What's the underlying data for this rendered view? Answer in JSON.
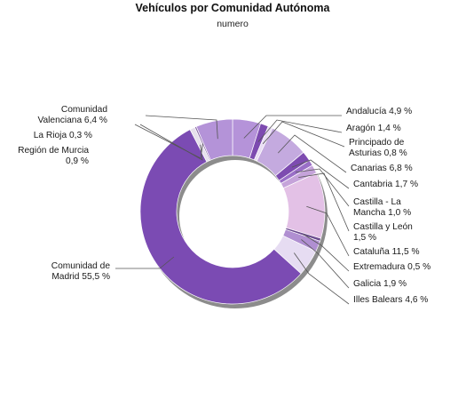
{
  "chart_data": {
    "type": "pie",
    "variant": "donut",
    "title": "Vehículos por Comunidad Autónoma",
    "subtitle": "numero",
    "units": "%",
    "slices": [
      {
        "label": [
          "Andalucía 4,9 %"
        ],
        "value": 4.9,
        "color": "#b593d9"
      },
      {
        "label": [
          "Aragón 1,4 %"
        ],
        "value": 1.4,
        "color": "#7d4bb0"
      },
      {
        "label": [
          "Principado de",
          "Asturias 0,8 %"
        ],
        "value": 0.8,
        "color": "#e9ddf4"
      },
      {
        "label": [
          "Canarias 6,8 %"
        ],
        "value": 6.8,
        "color": "#c4aadf"
      },
      {
        "label": [
          "Cantabria 1,7 %"
        ],
        "value": 1.7,
        "color": "#7d4bb0"
      },
      {
        "label": [
          "Castilla - La",
          "Mancha 1,0 %"
        ],
        "value": 1.0,
        "color": "#9a6fc7"
      },
      {
        "label": [
          "Castilla y León",
          "1,5 %"
        ],
        "value": 1.5,
        "color": "#c5a3da"
      },
      {
        "label": [
          "Cataluña 11,5 %"
        ],
        "value": 11.5,
        "color": "#e3c1e6"
      },
      {
        "label": [
          "Extremadura 0,5 %"
        ],
        "value": 0.5,
        "color": "#6a4a8e"
      },
      {
        "label": [
          "Galicia 1,9 %"
        ],
        "value": 1.9,
        "color": "#b08fd1"
      },
      {
        "label": [
          "Illes Balears 4,6 %"
        ],
        "value": 4.6,
        "color": "#e6dcf2"
      },
      {
        "label": [
          "Comunidad de",
          "Madrid 55,5 %"
        ],
        "value": 55.5,
        "color": "#7b4bb3"
      },
      {
        "label": [
          "Región de Murcia",
          "0,9 %"
        ],
        "value": 0.9,
        "color": "#e6e0ec"
      },
      {
        "label": [
          "La Rioja 0,3 %"
        ],
        "value": 0.3,
        "color": "#8a6aa6"
      },
      {
        "label": [
          "Comunidad",
          "Valenciana 6,4 %"
        ],
        "value": 6.4,
        "color": "#b493d8"
      }
    ],
    "legend": "none"
  }
}
